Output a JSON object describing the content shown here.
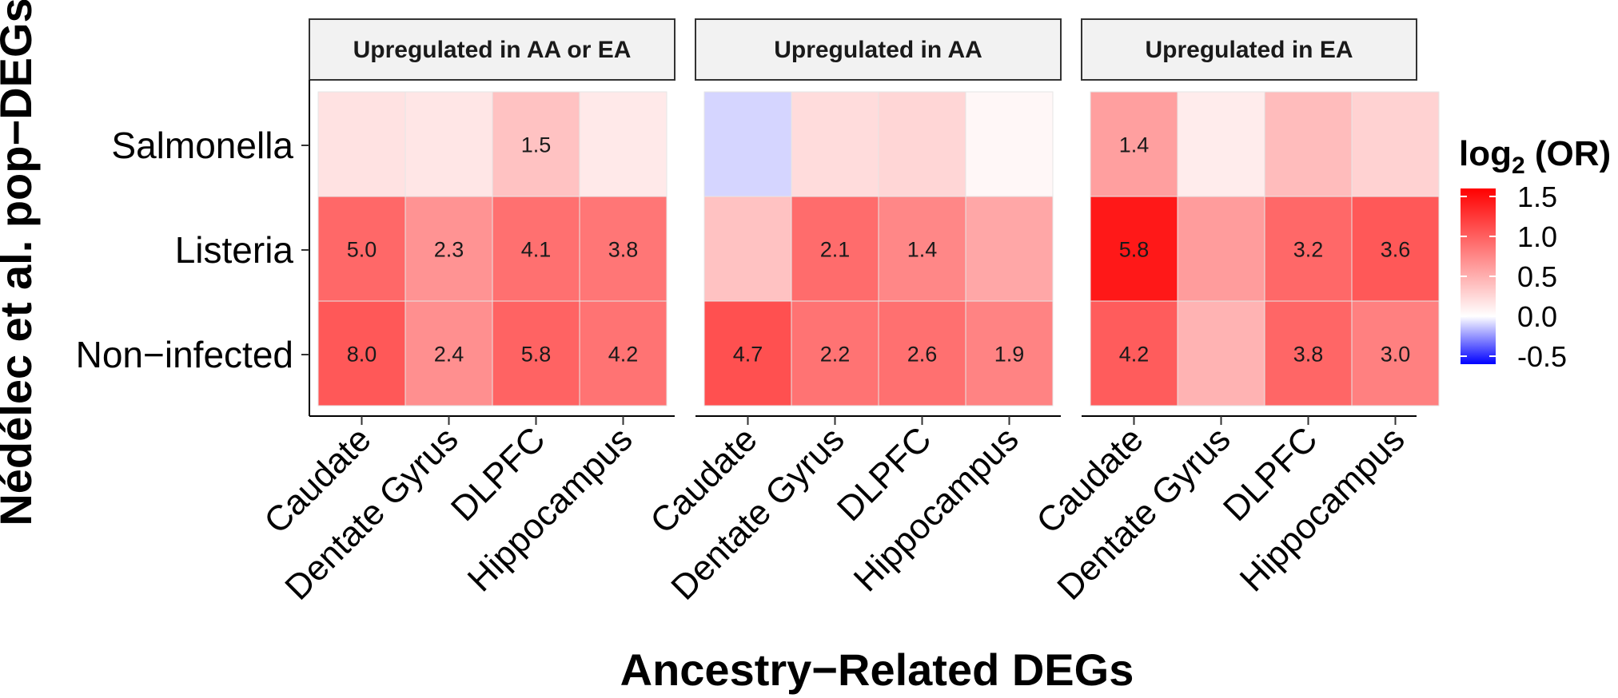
{
  "chart_data": {
    "type": "heatmap",
    "xlabel": "Ancestry−Related DEGs",
    "ylabel": "Nédélec et al. pop−DEGs",
    "rows": [
      "Salmonella",
      "Listeria",
      "Non−infected"
    ],
    "columns": [
      "Caudate",
      "Dentate Gyrus",
      "DLPFC",
      "Hippocampus"
    ],
    "legend": {
      "title_main": "log",
      "title_sub": "2",
      "title_rest": " (OR)",
      "ticks": [
        "1.5",
        "1.0",
        "0.5",
        "0.0",
        "-0.5"
      ],
      "tick_values": [
        1.5,
        1.0,
        0.5,
        0.0,
        -0.5
      ],
      "range": [
        -0.6,
        1.6
      ],
      "low_color": "#0000ff",
      "mid_color": "#ffffff",
      "high_color": "#ff0000",
      "placement": "right"
    },
    "panels": [
      {
        "title": "Upregulated in AA or EA",
        "fill": [
          [
            0.18,
            0.16,
            0.38,
            0.14
          ],
          [
            0.95,
            0.68,
            0.9,
            0.86
          ],
          [
            1.05,
            0.7,
            0.98,
            0.88
          ]
        ],
        "labels": [
          [
            "",
            "",
            "1.5",
            ""
          ],
          [
            "5.0",
            "2.3",
            "4.1",
            "3.8"
          ],
          [
            "8.0",
            "2.4",
            "5.8",
            "4.2"
          ]
        ]
      },
      {
        "title": "Upregulated in AA",
        "fill": [
          [
            -0.1,
            0.22,
            0.26,
            0.05
          ],
          [
            0.38,
            0.92,
            0.75,
            0.55
          ],
          [
            1.1,
            0.88,
            0.9,
            0.78
          ]
        ],
        "labels": [
          [
            "",
            "",
            "",
            ""
          ],
          [
            "",
            "2.1",
            "1.4",
            ""
          ],
          [
            "4.7",
            "2.2",
            "2.6",
            "1.9"
          ]
        ]
      },
      {
        "title": "Upregulated in EA",
        "fill": [
          [
            0.6,
            0.12,
            0.42,
            0.28
          ],
          [
            1.45,
            0.62,
            0.95,
            1.05
          ],
          [
            1.02,
            0.48,
            0.96,
            0.8
          ]
        ],
        "labels": [
          [
            "1.4",
            "",
            "",
            ""
          ],
          [
            "5.8",
            "",
            "3.2",
            "3.6"
          ],
          [
            "4.2",
            "",
            "3.8",
            "3.0"
          ]
        ]
      }
    ]
  }
}
